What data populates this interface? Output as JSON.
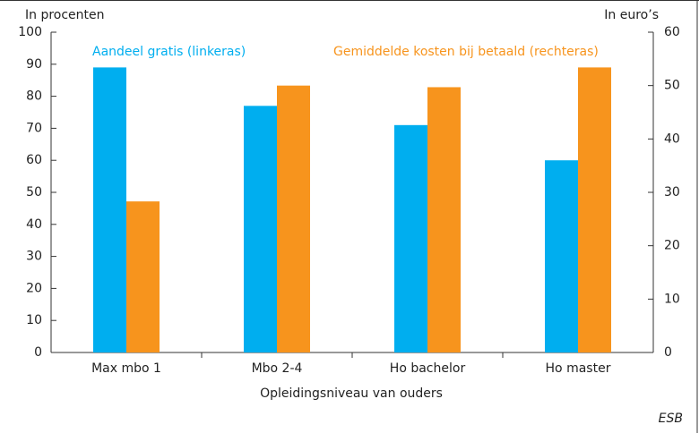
{
  "chart_data": {
    "type": "bar",
    "y_label": "In procenten",
    "y2_label": "In euro’s",
    "x_label": "Opleidingsniveau van ouders",
    "source": "ESB",
    "categories": [
      "Max mbo 1",
      "Mbo 2-4",
      "Ho bachelor",
      "Ho master"
    ],
    "series": [
      {
        "name": "Aandeel gratis (linkeras)",
        "color": "#00aeef",
        "values": [
          89,
          77,
          71,
          60
        ]
      },
      {
        "name": "Gemiddelde kosten bij betaald (rechteras)",
        "color": "#f7941d",
        "axis": "y2",
        "values": [
          28.3,
          50,
          49.7,
          53.4
        ]
      }
    ],
    "ylim": [
      0,
      100
    ],
    "yticks": [
      0,
      10,
      20,
      30,
      40,
      50,
      60,
      70,
      80,
      90,
      100
    ],
    "y2lim": [
      0,
      60
    ],
    "y2ticks": [
      0,
      10,
      20,
      30,
      40,
      50,
      60
    ]
  }
}
